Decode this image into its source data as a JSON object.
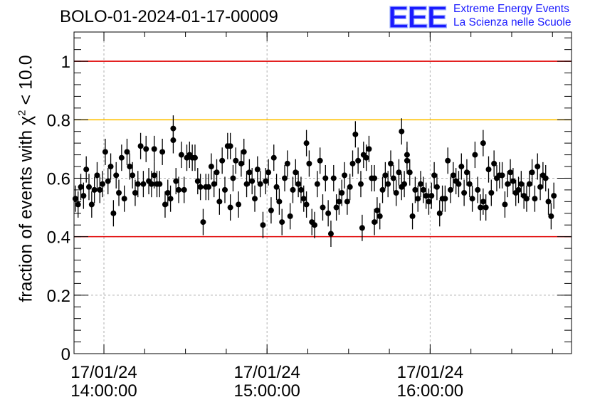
{
  "header": {
    "run_title": "BOLO-01-2024-01-17-00009",
    "logo_letters": "EEE",
    "logo_line1": "Extreme Energy Events",
    "logo_line2": "La Scienza nelle Scuole",
    "logo_color": "#1a1aff"
  },
  "chart_data": {
    "type": "scatter",
    "title": "BOLO-01-2024-01-17-00009",
    "ylabel_pre": "fraction of events with ",
    "ylabel_chi": "χ",
    "ylabel_exp": "2",
    "ylabel_post": " < 10.0",
    "xlabel": "",
    "x_unit": "minutes",
    "xlim": [
      -11,
      172
    ],
    "ylim": [
      0,
      1.1
    ],
    "y_ticks": [
      {
        "value": 0,
        "label": "0"
      },
      {
        "value": 0.2,
        "label": "0.2"
      },
      {
        "value": 0.4,
        "label": "0.4"
      },
      {
        "value": 0.6,
        "label": "0.6"
      },
      {
        "value": 0.8,
        "label": "0.8"
      },
      {
        "value": 1,
        "label": "1"
      }
    ],
    "x_ticks": [
      {
        "value": 0,
        "date": "17/01/24",
        "time": "14:00:00"
      },
      {
        "value": 60,
        "date": "17/01/24",
        "time": "15:00:00"
      },
      {
        "value": 120,
        "date": "17/01/24",
        "time": "16:00:00"
      }
    ],
    "grid": true,
    "reference_lines": [
      {
        "y": 1.0,
        "color": "#e00000"
      },
      {
        "y": 0.8,
        "color": "#ffc000"
      },
      {
        "y": 0.4,
        "color": "#e00000"
      }
    ],
    "marker_color": "#000000",
    "series": [
      {
        "x_start": -10.5,
        "x_step": 1.0,
        "error": 0.045,
        "y": [
          0.53,
          0.51,
          0.57,
          0.54,
          0.63,
          0.57,
          0.51,
          0.56,
          0.61,
          0.56,
          0.58,
          0.69,
          0.59,
          0.64,
          0.48,
          0.61,
          0.55,
          0.67,
          0.53,
          0.69,
          0.64,
          0.61,
          0.55,
          0.58,
          0.71,
          0.58,
          0.7,
          0.59,
          0.58,
          0.61,
          0.58,
          0.58,
          0.69,
          0.51,
          0.55,
          0.53,
          0.77,
          0.59,
          0.56,
          0.68,
          0.56,
          0.67,
          0.68,
          0.67,
          0.67,
          0.59,
          0.57,
          0.45,
          0.57,
          0.57,
          0.64,
          0.58,
          0.62,
          0.52,
          0.66,
          0.56,
          0.71,
          0.5,
          0.6,
          0.66,
          0.51,
          0.65,
          0.69,
          0.58,
          0.62,
          0.59,
          0.53,
          0.63,
          0.58,
          0.44,
          0.59,
          0.62,
          0.49,
          0.67,
          0.57,
          0.52,
          0.45,
          0.6,
          0.65,
          0.47,
          0.56,
          0.62,
          0.58,
          0.56,
          0.53,
          0.51,
          0.65,
          0.45,
          0.44,
          0.58,
          0.66,
          0.5,
          0.6,
          0.48,
          0.41,
          0.6,
          0.5,
          0.52,
          0.55,
          0.61,
          0.52,
          0.57,
          0.65,
          0.75,
          0.66,
          0.58,
          0.68,
          0.67,
          0.7,
          0.6,
          0.6,
          0.49,
          0.47,
          0.56,
          0.61,
          0.58,
          0.65,
          0.6,
          0.55,
          0.62,
          0.57,
          0.58,
          0.66,
          0.62,
          0.47,
          0.56,
          0.53,
          0.58,
          0.56,
          0.54,
          0.52,
          0.54,
          0.61,
          0.57,
          0.48,
          0.53,
          0.53,
          0.66,
          0.56,
          0.61,
          0.59,
          0.58,
          0.64,
          0.55,
          0.62,
          0.58,
          0.53,
          0.68,
          0.56,
          0.5,
          0.52,
          0.5,
          0.63,
          0.55,
          0.65,
          0.6,
          0.61,
          0.61,
          0.51,
          0.58,
          0.62,
          0.59,
          0.55,
          0.56,
          0.58,
          0.54,
          0.53,
          0.58,
          0.62,
          0.53,
          0.64,
          0.57,
          0.61,
          0.6,
          0.52,
          0.47,
          0.54
        ]
      }
    ],
    "highlight_points": [
      {
        "x": 25.5,
        "y": 0.73
      },
      {
        "x": 74.5,
        "y": 0.72
      },
      {
        "x": 109.5,
        "y": 0.76
      },
      {
        "x": 46.5,
        "y": 0.71
      },
      {
        "x": 18.5,
        "y": 0.7
      },
      {
        "x": 139.5,
        "y": 0.72
      },
      {
        "x": 111.5,
        "y": 0.68
      },
      {
        "x": 95.0,
        "y": 0.43
      },
      {
        "x": 99.5,
        "y": 0.45
      }
    ]
  }
}
